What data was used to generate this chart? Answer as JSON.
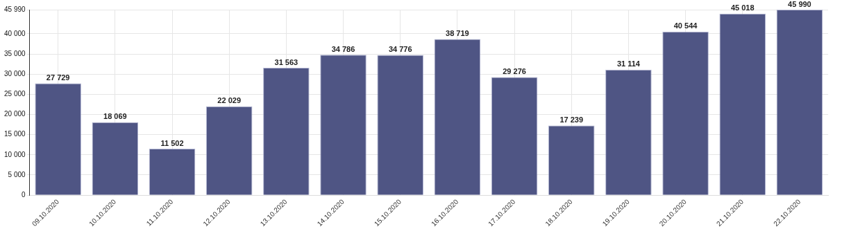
{
  "chart_data": {
    "type": "bar",
    "categories": [
      "09.10.2020",
      "10.10.2020",
      "11.10.2020",
      "12.10.2020",
      "13.10.2020",
      "14.10.2020",
      "15.10.2020",
      "16.10.2020",
      "17.10.2020",
      "18.10.2020",
      "19.10.2020",
      "20.10.2020",
      "21.10.2020",
      "22.10.2020"
    ],
    "values": [
      27729,
      18069,
      11502,
      22029,
      31563,
      34786,
      34776,
      38719,
      29276,
      17239,
      31114,
      40544,
      45018,
      45990
    ],
    "value_labels": [
      "27 729",
      "18 069",
      "11 502",
      "22 029",
      "31 563",
      "34 786",
      "34 776",
      "38 719",
      "29 276",
      "17 239",
      "31 114",
      "40 544",
      "45 018",
      "45 990"
    ],
    "color": "#4f5584",
    "ylim": [
      0,
      45990
    ],
    "yticks": [
      {
        "value": 0,
        "label": "0"
      },
      {
        "value": 5000,
        "label": "5 000"
      },
      {
        "value": 10000,
        "label": "10 000"
      },
      {
        "value": 15000,
        "label": "15 000"
      },
      {
        "value": 20000,
        "label": "20 000"
      },
      {
        "value": 25000,
        "label": "25 000"
      },
      {
        "value": 30000,
        "label": "30 000"
      },
      {
        "value": 35000,
        "label": "35 000"
      },
      {
        "value": 40000,
        "label": "40 000"
      },
      {
        "value": 45990,
        "label": "45 990"
      }
    ],
    "grid": true
  }
}
